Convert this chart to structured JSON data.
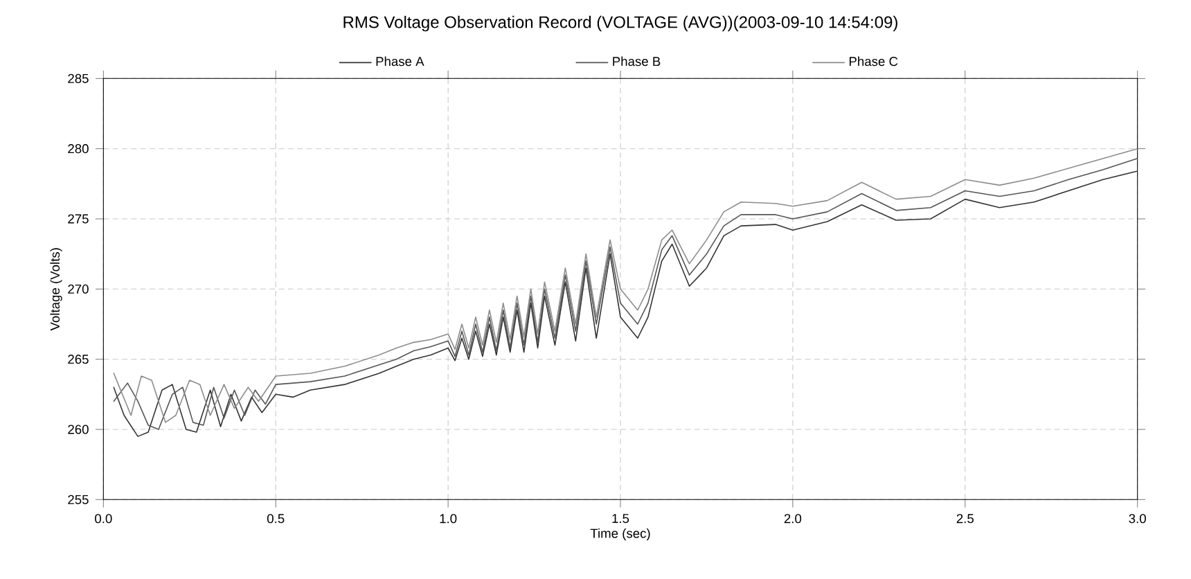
{
  "chart_data": {
    "type": "line",
    "title": "RMS Voltage Observation Record (VOLTAGE (AVG))(2003-09-10 14:54:09)",
    "xlabel": "Time (sec)",
    "ylabel": "Voltage (Volts)",
    "xlim": [
      0,
      3
    ],
    "ylim": [
      255,
      285
    ],
    "xticks": [
      {
        "value": 0,
        "label": "0.0"
      },
      {
        "value": 0.5,
        "label": "0.5"
      },
      {
        "value": 1,
        "label": "1.0"
      },
      {
        "value": 1.5,
        "label": "1.5"
      },
      {
        "value": 2,
        "label": "2.0"
      },
      {
        "value": 2.5,
        "label": "2.5"
      },
      {
        "value": 3,
        "label": "3.0"
      }
    ],
    "yticks": [
      255,
      260,
      265,
      270,
      275,
      280,
      285
    ],
    "grid": true,
    "legend": "top",
    "marker": "none",
    "line_style": "solid",
    "series": [
      {
        "name": "Phase A",
        "color": "#333333",
        "x": [
          0.03,
          0.06,
          0.1,
          0.13,
          0.17,
          0.2,
          0.24,
          0.27,
          0.31,
          0.34,
          0.37,
          0.4,
          0.43,
          0.46,
          0.5,
          0.55,
          0.6,
          0.7,
          0.8,
          0.85,
          0.9,
          0.95,
          1.0,
          1.02,
          1.04,
          1.06,
          1.08,
          1.1,
          1.12,
          1.14,
          1.16,
          1.18,
          1.2,
          1.22,
          1.24,
          1.26,
          1.28,
          1.31,
          1.34,
          1.37,
          1.4,
          1.43,
          1.47,
          1.5,
          1.55,
          1.58,
          1.62,
          1.65,
          1.7,
          1.75,
          1.8,
          1.85,
          1.95,
          2.0,
          2.1,
          2.2,
          2.3,
          2.4,
          2.5,
          2.6,
          2.7,
          2.8,
          2.9,
          3.0
        ],
        "values": [
          263,
          261,
          259.5,
          259.8,
          262.8,
          263.2,
          260,
          259.8,
          262.8,
          260.2,
          262.5,
          260.6,
          262.3,
          261.2,
          262.5,
          262.3,
          262.8,
          263.2,
          264,
          264.5,
          265,
          265.3,
          265.8,
          264.9,
          266.5,
          265,
          267,
          265.2,
          267.5,
          265.3,
          268,
          265.5,
          268.5,
          265.5,
          269,
          265.8,
          269.5,
          266,
          270.5,
          266.3,
          271.5,
          266.5,
          272.5,
          268,
          266.5,
          268,
          272,
          273.2,
          270.2,
          271.5,
          273.8,
          274.5,
          274.6,
          274.2,
          274.8,
          276,
          274.9,
          275,
          276.4,
          275.8,
          276.2,
          277,
          277.8,
          278.4
        ]
      },
      {
        "name": "Phase B",
        "color": "#555555",
        "x": [
          0.03,
          0.07,
          0.1,
          0.13,
          0.16,
          0.2,
          0.23,
          0.26,
          0.29,
          0.32,
          0.35,
          0.38,
          0.41,
          0.44,
          0.47,
          0.5,
          0.6,
          0.7,
          0.8,
          0.85,
          0.9,
          0.95,
          1.0,
          1.02,
          1.04,
          1.06,
          1.08,
          1.1,
          1.12,
          1.14,
          1.16,
          1.18,
          1.2,
          1.22,
          1.24,
          1.26,
          1.28,
          1.31,
          1.34,
          1.37,
          1.4,
          1.43,
          1.47,
          1.5,
          1.55,
          1.58,
          1.62,
          1.65,
          1.7,
          1.75,
          1.8,
          1.85,
          1.95,
          2.0,
          2.1,
          2.2,
          2.3,
          2.4,
          2.5,
          2.6,
          2.7,
          2.8,
          2.9,
          3.0
        ],
        "values": [
          262,
          263.3,
          262,
          260.3,
          260,
          262.5,
          263,
          260.5,
          260.3,
          263,
          260.8,
          262.8,
          261,
          262.8,
          261.8,
          263.2,
          263.4,
          263.8,
          264.6,
          265,
          265.6,
          265.9,
          266.3,
          265.2,
          267,
          265.3,
          267.5,
          265.5,
          268,
          265.6,
          268.5,
          265.8,
          269,
          266,
          269.5,
          266.2,
          270,
          266.5,
          271,
          267,
          272,
          267.5,
          273,
          269,
          267.5,
          269,
          272.8,
          273.8,
          271,
          272.5,
          274.5,
          275.3,
          275.3,
          275,
          275.5,
          276.8,
          275.6,
          275.8,
          277,
          276.6,
          277,
          277.8,
          278.5,
          279.3
        ]
      },
      {
        "name": "Phase C",
        "color": "#8c8c8c",
        "x": [
          0.03,
          0.06,
          0.08,
          0.11,
          0.14,
          0.18,
          0.21,
          0.25,
          0.28,
          0.31,
          0.35,
          0.38,
          0.42,
          0.45,
          0.5,
          0.6,
          0.7,
          0.8,
          0.85,
          0.9,
          0.95,
          1.0,
          1.02,
          1.04,
          1.06,
          1.08,
          1.1,
          1.12,
          1.14,
          1.16,
          1.18,
          1.2,
          1.22,
          1.24,
          1.26,
          1.28,
          1.31,
          1.34,
          1.37,
          1.4,
          1.43,
          1.47,
          1.5,
          1.55,
          1.58,
          1.62,
          1.65,
          1.7,
          1.75,
          1.8,
          1.85,
          1.95,
          2.0,
          2.1,
          2.2,
          2.3,
          2.4,
          2.5,
          2.6,
          2.7,
          2.8,
          2.9,
          3.0
        ],
        "values": [
          264,
          262.2,
          261,
          263.8,
          263.5,
          260.5,
          261,
          263.5,
          263.2,
          261,
          263.2,
          261.5,
          263,
          262,
          263.8,
          264,
          264.5,
          265.3,
          265.8,
          266.2,
          266.4,
          266.8,
          265.7,
          267.5,
          265.8,
          268,
          266,
          268.5,
          266.2,
          269,
          266.4,
          269.5,
          266.6,
          270,
          266.8,
          270.5,
          267,
          271.5,
          267.5,
          272.5,
          268,
          273.5,
          270,
          268.5,
          270,
          273.5,
          274.2,
          271.8,
          273.5,
          275.5,
          276.2,
          276.1,
          275.9,
          276.3,
          277.6,
          276.4,
          276.6,
          277.8,
          277.4,
          277.9,
          278.6,
          279.3,
          280
        ]
      }
    ]
  }
}
